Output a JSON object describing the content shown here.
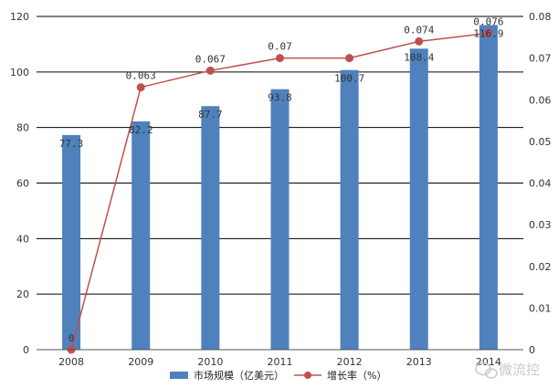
{
  "chart_data": {
    "type": "bar",
    "categories": [
      "2008",
      "2009",
      "2010",
      "2011",
      "2012",
      "2013",
      "2014"
    ],
    "series": [
      {
        "name": "市场规模（亿美元）",
        "kind": "bar",
        "axis": "left",
        "values": [
          77.3,
          82.2,
          87.7,
          93.8,
          100.7,
          108.4,
          116.9
        ],
        "labels": [
          "77.3",
          "82.2",
          "87.7",
          "93.8",
          "100.7",
          "108.4",
          "116.9"
        ]
      },
      {
        "name": "增长率（%）",
        "kind": "line",
        "axis": "right",
        "values": [
          0,
          0.063,
          0.067,
          0.07,
          0.07,
          0.074,
          0.076
        ],
        "labels": [
          "0",
          "0.063",
          "0.067",
          "0.07",
          "",
          "0.074",
          "0.076"
        ]
      }
    ],
    "ylim": [
      0,
      120
    ],
    "y_ticks": [
      "0",
      "20",
      "40",
      "60",
      "80",
      "100",
      "120"
    ],
    "y2lim": [
      0,
      0.08
    ],
    "y2_ticks": [
      "0",
      "0.01",
      "0.02",
      "0.03",
      "0.04",
      "0.05",
      "0.06",
      "0.07",
      "0.08"
    ],
    "grid": true,
    "legend_position": "bottom-center"
  },
  "colors": {
    "bar": "#4f81bd",
    "line": "#c0504d",
    "grid": "#000000"
  },
  "watermark": {
    "icon": "wechat-bubble-icon",
    "text": "微流控"
  }
}
